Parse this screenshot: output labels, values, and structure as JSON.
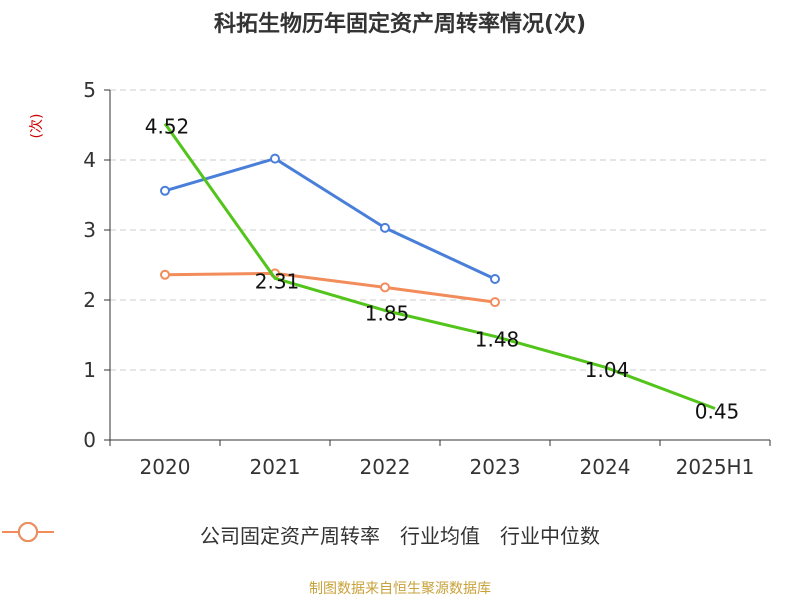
{
  "title": "科拓生物历年固定资产周转率情况(次)",
  "source": "制图数据来自恒生聚源数据库",
  "chart_data": {
    "type": "line",
    "title": "科拓生物历年固定资产周转率情况(次)",
    "ylabel": "(次)",
    "xlabel": "",
    "categories": [
      "2020",
      "2021",
      "2022",
      "2023",
      "2024",
      "2025H1"
    ],
    "ylim": [
      0,
      5
    ],
    "yticks": [
      0,
      1,
      2,
      3,
      4,
      5
    ],
    "grid": true,
    "legend_position": "bottom",
    "series": [
      {
        "name": "公司固定资产周转率",
        "color": "#52c41a",
        "values": [
          4.52,
          2.31,
          1.85,
          1.48,
          1.04,
          0.45
        ],
        "labels": [
          "4.52",
          "2.31",
          "1.85",
          "1.48",
          "1.04",
          "0.45"
        ]
      },
      {
        "name": "行业均值",
        "color": "#4a7fd9",
        "values": [
          3.56,
          4.02,
          3.03,
          2.3,
          null,
          null
        ]
      },
      {
        "name": "行业中位数",
        "color": "#f28c5a",
        "values": [
          2.36,
          2.38,
          2.18,
          1.97,
          null,
          null
        ]
      }
    ]
  }
}
